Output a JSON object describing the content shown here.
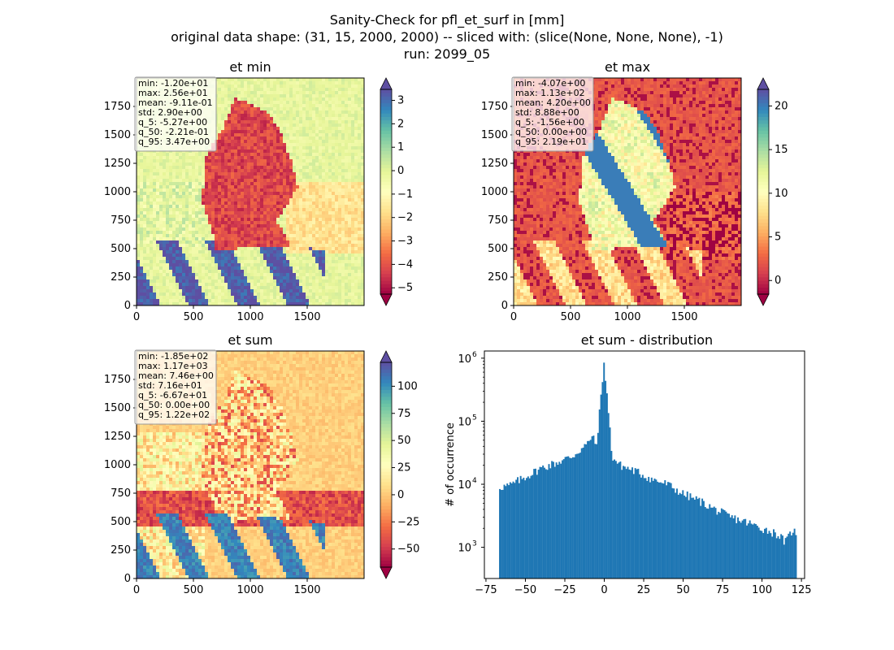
{
  "figure": {
    "title_lines": [
      "Sanity-Check for pfl_et_surf in [mm]",
      "original data shape: (31, 15, 2000, 2000) -- sliced with: (slice(None, None, None), -1)",
      "run: 2099_05"
    ]
  },
  "colormap": {
    "name": "Spectral",
    "stops": [
      "#9e0142",
      "#d53e4f",
      "#f46d43",
      "#fdae61",
      "#fee08b",
      "#ffffbf",
      "#e6f598",
      "#abdda4",
      "#66c2a5",
      "#3288bd",
      "#5e4fa2"
    ]
  },
  "maps": [
    {
      "id": "et-min",
      "title": "et min",
      "stats": [
        "min: -1.20e+01",
        "max: 2.56e+01",
        "mean: -9.11e-01",
        "std: 2.90e+00",
        "q_5: -5.27e+00",
        "q_50: -2.21e-01",
        "q_95: 3.47e+00"
      ],
      "x_ticks": [
        "0",
        "500",
        "1000",
        "1500"
      ],
      "y_ticks": [
        "0",
        "250",
        "500",
        "750",
        "1000",
        "1250",
        "1500",
        "1750"
      ],
      "colorbar": {
        "vmin": -5.27,
        "vmax": 3.47,
        "ticks": [
          -5,
          -4,
          -3,
          -2,
          -1,
          0,
          1,
          2,
          3
        ],
        "tick_labels": [
          "−5",
          "−4",
          "−3",
          "−2",
          "−1",
          "0",
          "1",
          "2",
          "3"
        ]
      }
    },
    {
      "id": "et-max",
      "title": "et max",
      "stats": [
        "min: -4.07e+00",
        "max: 1.13e+02",
        "mean: 4.20e+00",
        "std: 8.88e+00",
        "q_5: -1.56e+00",
        "q_50: 0.00e+00",
        "q_95: 2.19e+01"
      ],
      "x_ticks": [
        "0",
        "500",
        "1000",
        "1500"
      ],
      "y_ticks": [
        "0",
        "250",
        "500",
        "750",
        "1000",
        "1250",
        "1500",
        "1750"
      ],
      "colorbar": {
        "vmin": -1.56,
        "vmax": 21.9,
        "ticks": [
          0,
          5,
          10,
          15,
          20
        ],
        "tick_labels": [
          "0",
          "5",
          "10",
          "15",
          "20"
        ]
      }
    },
    {
      "id": "et-sum",
      "title": "et sum",
      "stats": [
        "min: -1.85e+02",
        "max: 1.17e+03",
        "mean: 7.46e+00",
        "std: 7.16e+01",
        "q_5: -6.67e+01",
        "q_50: 0.00e+00",
        "q_95: 1.22e+02"
      ],
      "x_ticks": [
        "0",
        "500",
        "1000",
        "1500"
      ],
      "y_ticks": [
        "0",
        "250",
        "500",
        "750",
        "1000",
        "1250",
        "1500",
        "1750"
      ],
      "colorbar": {
        "vmin": -66.7,
        "vmax": 122,
        "ticks": [
          -50,
          -25,
          0,
          25,
          50,
          75,
          100
        ],
        "tick_labels": [
          "−50",
          "−25",
          "0",
          "25",
          "50",
          "75",
          "100"
        ]
      }
    }
  ],
  "chart_data": {
    "type": "bar",
    "title": "et sum - distribution",
    "xlabel": "",
    "ylabel": "# of occurrence",
    "yscale": "log",
    "xlim": [
      -76,
      127
    ],
    "ylim": [
      320,
      1300000
    ],
    "x_ticks": [
      -75,
      -50,
      -25,
      0,
      25,
      50,
      75,
      100,
      125
    ],
    "x_tick_labels": [
      "−75",
      "−50",
      "−25",
      "0",
      "25",
      "50",
      "75",
      "100",
      "125"
    ],
    "y_ticks": [
      1000,
      10000,
      100000,
      1000000
    ],
    "y_tick_base": "10",
    "y_tick_exponents": [
      "3",
      "4",
      "5",
      "6"
    ],
    "color": "#1f77b4",
    "bin_range": [
      -66.7,
      122
    ],
    "bins": 200,
    "points": [
      {
        "x": -66.7,
        "y": 9000
      },
      {
        "x": -60,
        "y": 9500
      },
      {
        "x": -50,
        "y": 13000
      },
      {
        "x": -40,
        "y": 18000
      },
      {
        "x": -30,
        "y": 22000
      },
      {
        "x": -20,
        "y": 28000
      },
      {
        "x": -10,
        "y": 45000
      },
      {
        "x": -8,
        "y": 60000
      },
      {
        "x": -5,
        "y": 40000
      },
      {
        "x": 0,
        "y": 850000
      },
      {
        "x": 5,
        "y": 27000
      },
      {
        "x": 10,
        "y": 20000
      },
      {
        "x": 20,
        "y": 16000
      },
      {
        "x": 30,
        "y": 12000
      },
      {
        "x": 40,
        "y": 10000
      },
      {
        "x": 50,
        "y": 7000
      },
      {
        "x": 60,
        "y": 5500
      },
      {
        "x": 70,
        "y": 4000
      },
      {
        "x": 80,
        "y": 3000
      },
      {
        "x": 90,
        "y": 2500
      },
      {
        "x": 100,
        "y": 2000
      },
      {
        "x": 110,
        "y": 1600
      },
      {
        "x": 115,
        "y": 1200
      },
      {
        "x": 120,
        "y": 2000
      },
      {
        "x": 122,
        "y": 1300
      }
    ]
  }
}
